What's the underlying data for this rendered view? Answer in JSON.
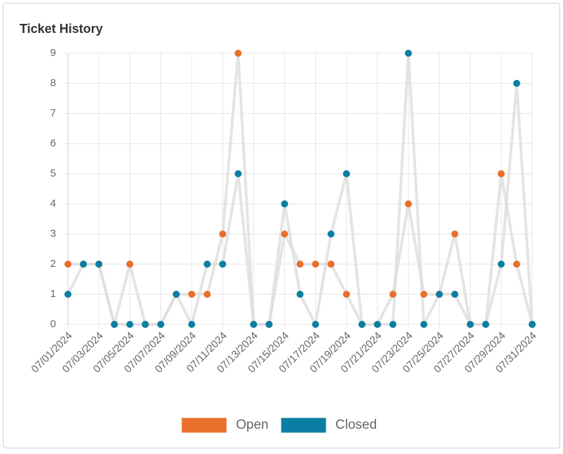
{
  "chart_data": {
    "type": "line",
    "title": "Ticket History",
    "categories": [
      "07/01/2024",
      null,
      "07/03/2024",
      null,
      "07/05/2024",
      null,
      "07/07/2024",
      null,
      "07/09/2024",
      null,
      "07/11/2024",
      null,
      "07/13/2024",
      null,
      "07/15/2024",
      null,
      "07/17/2024",
      null,
      "07/19/2024",
      null,
      "07/21/2024",
      null,
      "07/23/2024",
      null,
      "07/25/2024",
      null,
      "07/27/2024",
      null,
      "07/29/2024",
      null,
      "07/31/2024"
    ],
    "series": [
      {
        "name": "Open",
        "color": "#e8702a",
        "values": [
          2,
          2,
          2,
          0,
          2,
          0,
          0,
          1,
          1,
          1,
          3,
          9,
          0,
          0,
          3,
          2,
          2,
          2,
          1,
          0,
          0,
          1,
          4,
          1,
          1,
          3,
          0,
          0,
          5,
          2,
          0
        ]
      },
      {
        "name": "Closed",
        "color": "#0b7ea3",
        "values": [
          1,
          2,
          2,
          0,
          0,
          0,
          0,
          1,
          0,
          2,
          2,
          5,
          0,
          0,
          4,
          1,
          0,
          3,
          5,
          0,
          0,
          0,
          9,
          0,
          1,
          1,
          0,
          0,
          2,
          8,
          0
        ]
      }
    ],
    "line_color": "#dddddd",
    "ylim": [
      0,
      9
    ],
    "yticks": [
      0,
      1,
      2,
      3,
      4,
      5,
      6,
      7,
      8,
      9
    ],
    "grid": true,
    "legend": "bottom"
  }
}
